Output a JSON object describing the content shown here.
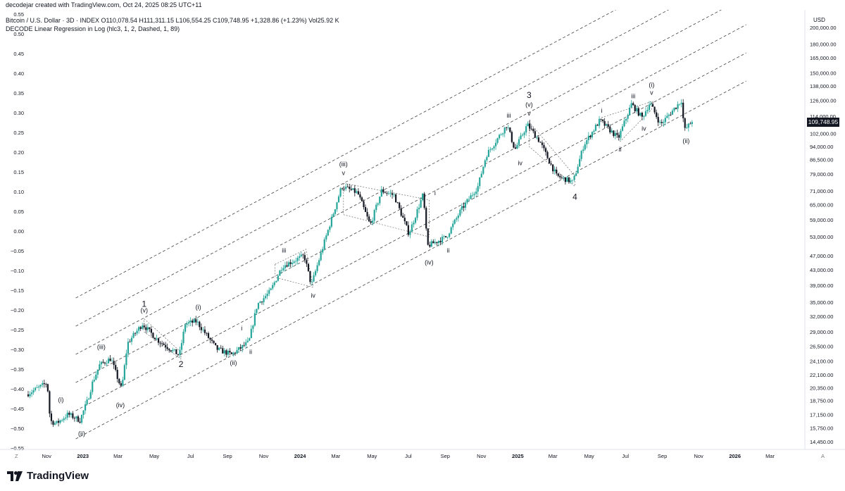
{
  "header": {
    "created_by": "decodejar created with TradingView.com, Oct 24, 2025 08:25 UTC+11",
    "symbol_line": "Bitcoin / U.S. Dollar · 3D · INDEX  O110,078.54  H111,311.15  L106,554.25  C109,748.95  +1,328.86 (+1.23%)  Vol25.92 K",
    "indicator_line": "DECODE Linear Regression in Log (hlc3, 1, 2, Dashed, 1, 89)"
  },
  "footer": {
    "brand": "TradingView",
    "z_label": "Z",
    "a_label": "A"
  },
  "colors": {
    "up": "#26a69a",
    "down": "#131722",
    "dashed": "#444444",
    "price_tag_bg": "#131722"
  },
  "chart_data": {
    "type": "candlestick",
    "title": "",
    "currency_label": "USD",
    "last_price_label": "109,748.95",
    "left_axis": {
      "label": "",
      "ticks": [
        "0.55",
        "0.50",
        "0.45",
        "0.40",
        "0.35",
        "0.30",
        "0.25",
        "0.20",
        "0.15",
        "0.10",
        "0.05",
        "0.00",
        "−0.05",
        "−0.10",
        "−0.15",
        "−0.20",
        "−0.25",
        "−0.30",
        "−0.35",
        "−0.40",
        "−0.45",
        "−0.50",
        "−0.55"
      ],
      "range": [
        -0.55,
        0.55
      ]
    },
    "right_axis": {
      "scale": "log",
      "ticks": [
        "200,000.00",
        "180,000.00",
        "165,000.00",
        "150,000.00",
        "138,000.00",
        "126,000.00",
        "114,000.00",
        "102,000.00",
        "94,000.00",
        "86,500.00",
        "79,000.00",
        "71,000.00",
        "65,000.00",
        "59,000.00",
        "53,000.00",
        "47,000.00",
        "43,000.00",
        "39,000.00",
        "35,000.00",
        "32,000.00",
        "29,000.00",
        "26,500.00",
        "24,100.00",
        "22,100.00",
        "20,350.00",
        "18,750.00",
        "17,150.00",
        "15,750.00",
        "14,450.00"
      ]
    },
    "x_axis": {
      "ticks": [
        "Nov",
        "2023",
        "Mar",
        "May",
        "Jul",
        "Sep",
        "Nov",
        "2024",
        "Mar",
        "May",
        "Jul",
        "Sep",
        "Nov",
        "2025",
        "Mar",
        "May",
        "Jul",
        "Sep",
        "Nov",
        "2026",
        "Mar"
      ]
    },
    "price_path": [
      [
        "2022-10-01",
        19500
      ],
      [
        "2022-10-25",
        20500
      ],
      [
        "2022-11-05",
        21000
      ],
      [
        "2022-11-10",
        16500
      ],
      [
        "2022-11-20",
        16200
      ],
      [
        "2022-12-10",
        17200
      ],
      [
        "2022-12-30",
        16550
      ],
      [
        "2023-01-12",
        18800
      ],
      [
        "2023-01-20",
        21000
      ],
      [
        "2023-02-01",
        23500
      ],
      [
        "2023-02-20",
        24500
      ],
      [
        "2023-03-10",
        20100
      ],
      [
        "2023-03-20",
        27000
      ],
      [
        "2023-04-14",
        30500
      ],
      [
        "2023-05-10",
        27500
      ],
      [
        "2023-06-15",
        25000
      ],
      [
        "2023-06-25",
        30500
      ],
      [
        "2023-07-14",
        31000
      ],
      [
        "2023-08-17",
        26000
      ],
      [
        "2023-09-11",
        25100
      ],
      [
        "2023-10-10",
        27200
      ],
      [
        "2023-10-24",
        34500
      ],
      [
        "2023-11-15",
        37500
      ],
      [
        "2023-12-05",
        44000
      ],
      [
        "2024-01-11",
        47000
      ],
      [
        "2024-01-23",
        39000
      ],
      [
        "2024-02-15",
        52000
      ],
      [
        "2024-03-14",
        73000
      ],
      [
        "2024-04-10",
        70000
      ],
      [
        "2024-05-01",
        57000
      ],
      [
        "2024-05-20",
        71000
      ],
      [
        "2024-06-10",
        69000
      ],
      [
        "2024-07-05",
        54000
      ],
      [
        "2024-07-29",
        69500
      ],
      [
        "2024-08-05",
        50000
      ],
      [
        "2024-09-06",
        53000
      ],
      [
        "2024-10-01",
        63000
      ],
      [
        "2024-10-29",
        73000
      ],
      [
        "2024-11-12",
        89000
      ],
      [
        "2024-12-17",
        108000
      ],
      [
        "2024-12-30",
        92000
      ],
      [
        "2025-01-20",
        108000
      ],
      [
        "2025-02-10",
        97000
      ],
      [
        "2025-03-10",
        78000
      ],
      [
        "2025-04-07",
        75000
      ],
      [
        "2025-04-25",
        95000
      ],
      [
        "2025-05-22",
        111000
      ],
      [
        "2025-06-22",
        99000
      ],
      [
        "2025-07-14",
        123000
      ],
      [
        "2025-08-01",
        113000
      ],
      [
        "2025-08-14",
        124000
      ],
      [
        "2025-09-01",
        108000
      ],
      [
        "2025-10-06",
        126000
      ],
      [
        "2025-10-11",
        104000
      ],
      [
        "2025-10-23",
        109748.95
      ]
    ],
    "regression_channel": {
      "source": "DECODE Linear Regression in Log (hlc3, 1, 2, Dashed, 1, 89)",
      "line_count": 6
    },
    "wave_labels": [
      {
        "text": "1",
        "date": "2023-04-14",
        "price": 34000
      },
      {
        "text": "(v)",
        "date": "2023-04-14",
        "price": 32800
      },
      {
        "text": "2",
        "date": "2023-06-15",
        "price": 23200
      },
      {
        "text": "(iii)",
        "date": "2023-02-01",
        "price": 26000
      },
      {
        "text": "(iv)",
        "date": "2023-03-05",
        "price": 18000
      },
      {
        "text": "(i)",
        "date": "2022-11-25",
        "price": 18600
      },
      {
        "text": "(ii)",
        "date": "2022-12-30",
        "price": 15000
      },
      {
        "text": "(i)",
        "date": "2023-07-14",
        "price": 33500
      },
      {
        "text": "i",
        "date": "2023-09-25",
        "price": 29300
      },
      {
        "text": "(ii)",
        "date": "2023-09-11",
        "price": 23500
      },
      {
        "text": "ii",
        "date": "2023-10-10",
        "price": 25200
      },
      {
        "text": "iii",
        "date": "2023-12-05",
        "price": 48000
      },
      {
        "text": "iv",
        "date": "2024-01-23",
        "price": 36000
      },
      {
        "text": "(iii)",
        "date": "2024-03-14",
        "price": 83000
      },
      {
        "text": "v",
        "date": "2024-03-14",
        "price": 78500
      },
      {
        "text": "i",
        "date": "2024-08-15",
        "price": 69000
      },
      {
        "text": "ii",
        "date": "2024-09-06",
        "price": 48000
      },
      {
        "text": "(iv)",
        "date": "2024-08-05",
        "price": 44500
      },
      {
        "text": "iii",
        "date": "2024-12-17",
        "price": 113000
      },
      {
        "text": "3",
        "date": "2025-01-20",
        "price": 128000
      },
      {
        "text": "(v)",
        "date": "2025-01-20",
        "price": 121000
      },
      {
        "text": "v",
        "date": "2025-01-20",
        "price": 114500
      },
      {
        "text": "iv",
        "date": "2025-01-05",
        "price": 83500
      },
      {
        "text": "4",
        "date": "2025-04-07",
        "price": 67000
      },
      {
        "text": "i",
        "date": "2025-05-22",
        "price": 116500
      },
      {
        "text": "ii",
        "date": "2025-06-22",
        "price": 91000
      },
      {
        "text": "iii",
        "date": "2025-07-14",
        "price": 127500
      },
      {
        "text": "iv",
        "date": "2025-08-01",
        "price": 104000
      },
      {
        "text": "(i)",
        "date": "2025-08-14",
        "price": 137000
      },
      {
        "text": "v",
        "date": "2025-08-14",
        "price": 130500
      },
      {
        "text": "(ii)",
        "date": "2025-10-11",
        "price": 96000
      }
    ]
  }
}
